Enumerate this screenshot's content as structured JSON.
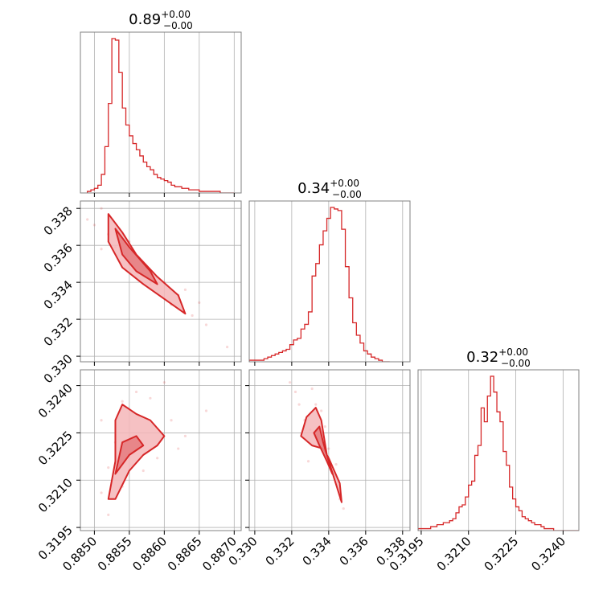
{
  "colors": {
    "series": "#d62728",
    "fill_outer": "#f4b6b8",
    "fill_inner": "#e77f83",
    "grid": "#b0b0b0",
    "frame": "#808080"
  },
  "chart_data": {
    "type": "corner",
    "parameters": [
      {
        "title": "0.89",
        "err_plus": "+0.00",
        "err_minus": "−0.00",
        "range": [
          0.8848,
          0.8871
        ],
        "ticks": [
          0.885,
          0.8855,
          0.886,
          0.8865,
          0.887
        ],
        "tick_labels": [
          "0.8850",
          "0.8855",
          "0.8860",
          "0.8865",
          "0.8870"
        ]
      },
      {
        "title": "0.34",
        "err_plus": "+0.00",
        "err_minus": "−0.00",
        "range": [
          0.3297,
          0.3384
        ],
        "ticks": [
          0.33,
          0.332,
          0.334,
          0.336,
          0.338
        ],
        "tick_labels": [
          "0.330",
          "0.332",
          "0.334",
          "0.336",
          "0.338"
        ]
      },
      {
        "title": "0.32",
        "err_plus": "+0.00",
        "err_minus": "−0.00",
        "range": [
          0.3194,
          0.3245
        ],
        "ticks": [
          0.3195,
          0.321,
          0.3225,
          0.324
        ],
        "tick_labels": [
          "0.3195",
          "0.3210",
          "0.3225",
          "0.3240"
        ]
      }
    ],
    "histograms": [
      {
        "param": 0,
        "edges_start": 0.8849,
        "bin_width": 5e-05,
        "counts": [
          1,
          2,
          3,
          5,
          12,
          30,
          58,
          100,
          99,
          78,
          55,
          44,
          37,
          32,
          28,
          24,
          20,
          17,
          15,
          12,
          10,
          9,
          8,
          7,
          5,
          4,
          4,
          3,
          3,
          2,
          2,
          2,
          1,
          1,
          1,
          1,
          1,
          1,
          0,
          0,
          0,
          0
        ]
      },
      {
        "param": 1,
        "edges_start": 0.3297,
        "bin_width": 0.0002,
        "counts": [
          1,
          1,
          1,
          1,
          2,
          3,
          4,
          5,
          6,
          7,
          8,
          11,
          14,
          15,
          21,
          24,
          32,
          55,
          63,
          75,
          84,
          92,
          99,
          98,
          97,
          85,
          61,
          41,
          25,
          17,
          12,
          7,
          5,
          3,
          2,
          1,
          0,
          0
        ]
      },
      {
        "param": 2,
        "edges_start": 0.3194,
        "bin_width": 0.0001,
        "counts": [
          1,
          1,
          1,
          1,
          2,
          2,
          3,
          3,
          4,
          4,
          5,
          6,
          9,
          12,
          13,
          17,
          23,
          25,
          38,
          43,
          62,
          55,
          68,
          78,
          70,
          60,
          55,
          40,
          33,
          22,
          16,
          12,
          10,
          7,
          6,
          5,
          4,
          3,
          3,
          2,
          1,
          1,
          1,
          0,
          0,
          0,
          0,
          0,
          0,
          0,
          0
        ]
      }
    ],
    "pairs": [
      {
        "x_param": 0,
        "y_param": 1,
        "outer_contour": [
          [
            0.8852,
            0.3377
          ],
          [
            0.8854,
            0.3367
          ],
          [
            0.8856,
            0.3355
          ],
          [
            0.8859,
            0.3343
          ],
          [
            0.8862,
            0.3333
          ],
          [
            0.8863,
            0.3323
          ],
          [
            0.886,
            0.3331
          ],
          [
            0.8857,
            0.3339
          ],
          [
            0.8854,
            0.3348
          ],
          [
            0.8852,
            0.3362
          ]
        ],
        "inner_contour": [
          [
            0.8853,
            0.3369
          ],
          [
            0.8855,
            0.3359
          ],
          [
            0.8858,
            0.3346
          ],
          [
            0.8859,
            0.3339
          ],
          [
            0.8856,
            0.3346
          ],
          [
            0.8854,
            0.3355
          ]
        ],
        "points": [
          [
            0.8851,
            0.338
          ],
          [
            0.8849,
            0.3374
          ],
          [
            0.885,
            0.3371
          ],
          [
            0.8852,
            0.3366
          ],
          [
            0.8853,
            0.3359
          ],
          [
            0.8855,
            0.3352
          ],
          [
            0.8857,
            0.3345
          ],
          [
            0.886,
            0.334
          ],
          [
            0.8862,
            0.3333
          ],
          [
            0.8864,
            0.3322
          ],
          [
            0.8866,
            0.3317
          ],
          [
            0.8869,
            0.3305
          ],
          [
            0.8858,
            0.3339
          ],
          [
            0.8861,
            0.3328
          ],
          [
            0.8855,
            0.3362
          ],
          [
            0.8851,
            0.3358
          ],
          [
            0.8863,
            0.3336
          ],
          [
            0.8865,
            0.3329
          ]
        ]
      },
      {
        "x_param": 0,
        "y_param": 2,
        "outer_contour": [
          [
            0.8852,
            0.3204
          ],
          [
            0.8853,
            0.3216
          ],
          [
            0.8853,
            0.3229
          ],
          [
            0.8854,
            0.3234
          ],
          [
            0.8856,
            0.3231
          ],
          [
            0.8858,
            0.3229
          ],
          [
            0.886,
            0.3224
          ],
          [
            0.8859,
            0.3221
          ],
          [
            0.8857,
            0.3218
          ],
          [
            0.8855,
            0.3213
          ],
          [
            0.8853,
            0.3204
          ]
        ],
        "inner_contour": [
          [
            0.8853,
            0.3212
          ],
          [
            0.8854,
            0.3222
          ],
          [
            0.8856,
            0.3224
          ],
          [
            0.8857,
            0.3221
          ],
          [
            0.8855,
            0.3218
          ]
        ],
        "points": [
          [
            0.8852,
            0.3199
          ],
          [
            0.8851,
            0.3206
          ],
          [
            0.8852,
            0.3214
          ],
          [
            0.8853,
            0.3222
          ],
          [
            0.8854,
            0.3235
          ],
          [
            0.8856,
            0.3238
          ],
          [
            0.8858,
            0.3236
          ],
          [
            0.886,
            0.3241
          ],
          [
            0.8861,
            0.3229
          ],
          [
            0.8863,
            0.3224
          ],
          [
            0.8862,
            0.322
          ],
          [
            0.8859,
            0.3217
          ],
          [
            0.8857,
            0.3213
          ],
          [
            0.8854,
            0.3208
          ],
          [
            0.8866,
            0.3232
          ],
          [
            0.8851,
            0.3229
          ]
        ]
      },
      {
        "x_param": 1,
        "y_param": 2,
        "outer_contour": [
          [
            0.3325,
            0.3224
          ],
          [
            0.3328,
            0.323
          ],
          [
            0.3333,
            0.3233
          ],
          [
            0.3336,
            0.3229
          ],
          [
            0.3339,
            0.3218
          ],
          [
            0.3347,
            0.3203
          ],
          [
            0.3346,
            0.3209
          ],
          [
            0.334,
            0.3217
          ],
          [
            0.3337,
            0.322
          ],
          [
            0.3331,
            0.3221
          ]
        ],
        "inner_contour": [
          [
            0.3332,
            0.3225
          ],
          [
            0.3335,
            0.3227
          ],
          [
            0.3337,
            0.3222
          ],
          [
            0.3342,
            0.3212
          ],
          [
            0.3339,
            0.3216
          ],
          [
            0.3335,
            0.3221
          ]
        ],
        "points": [
          [
            0.3322,
            0.3238
          ],
          [
            0.3324,
            0.3234
          ],
          [
            0.3327,
            0.3229
          ],
          [
            0.333,
            0.3226
          ],
          [
            0.3333,
            0.3234
          ],
          [
            0.3336,
            0.3232
          ],
          [
            0.3338,
            0.3227
          ],
          [
            0.334,
            0.322
          ],
          [
            0.3343,
            0.3211
          ],
          [
            0.3346,
            0.3204
          ],
          [
            0.3348,
            0.3201
          ],
          [
            0.3319,
            0.3241
          ],
          [
            0.3331,
            0.3239
          ],
          [
            0.3329,
            0.3216
          ],
          [
            0.3344,
            0.3215
          ]
        ]
      }
    ],
    "grid": true
  }
}
